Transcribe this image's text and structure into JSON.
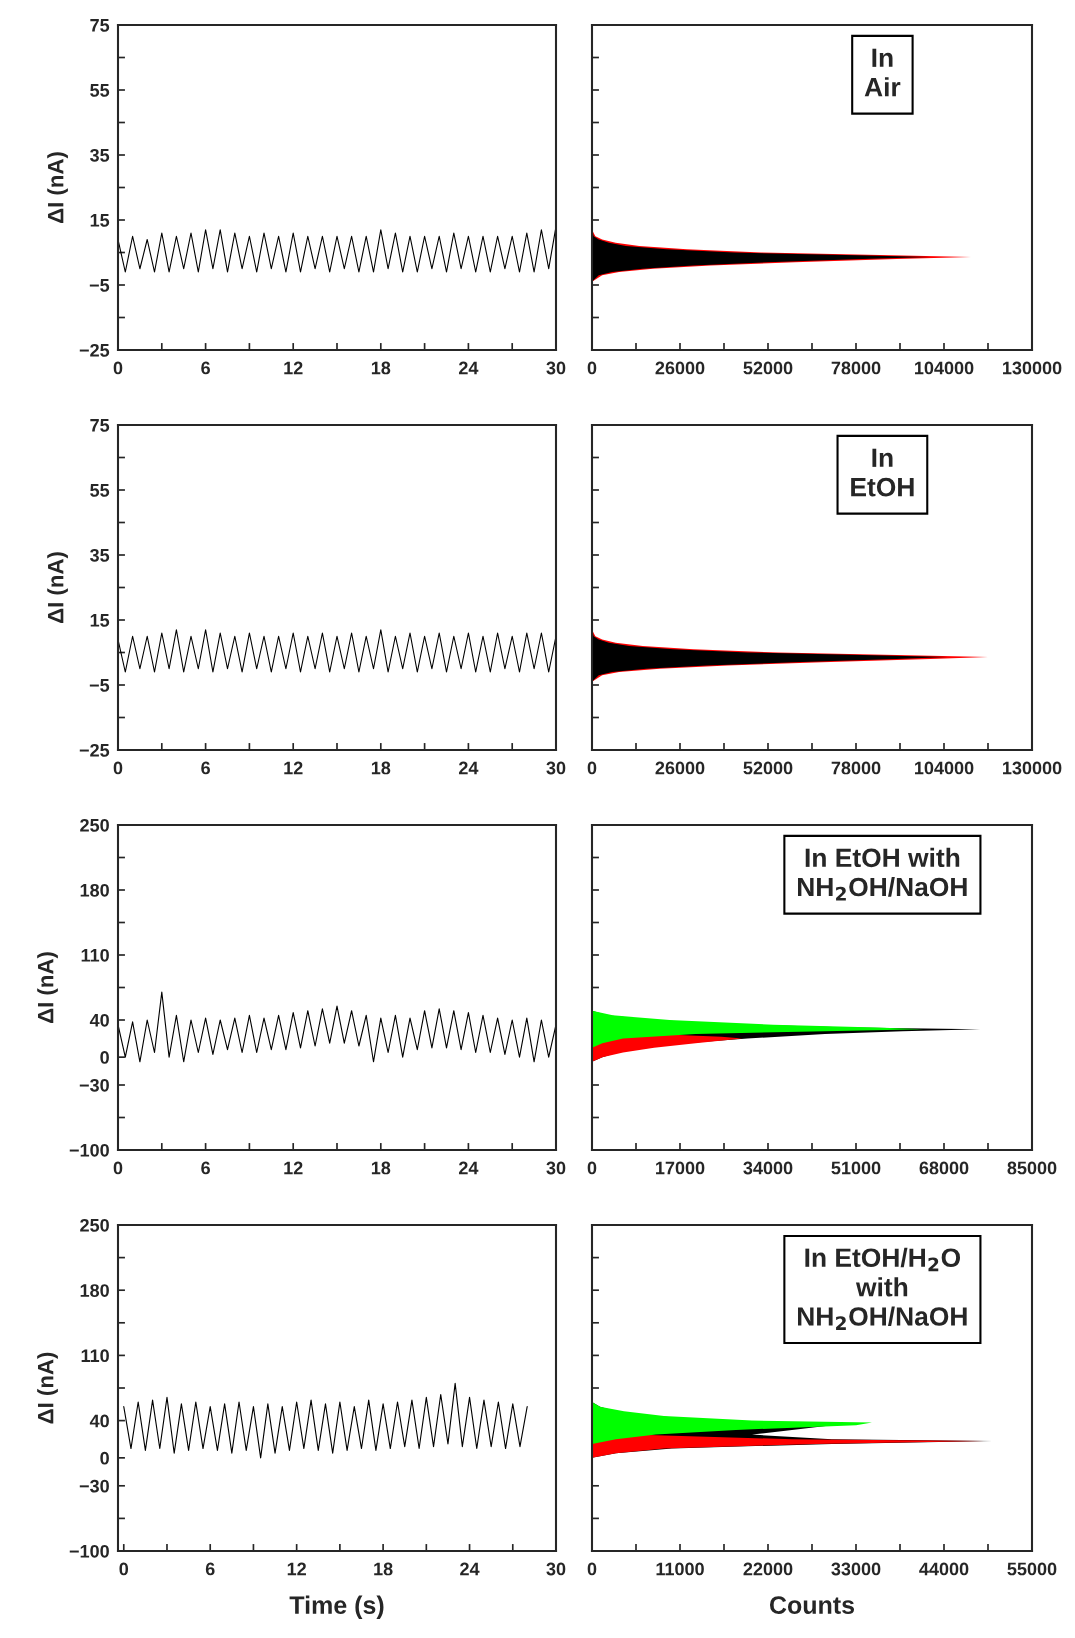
{
  "chart_data": [
    {
      "type": "line",
      "ylabel": "ΔI (nA)",
      "xlim": [
        0,
        30
      ],
      "ylim": [
        -25,
        75
      ],
      "xticks": [
        0,
        {
          "value": 3,
          "label": null
        },
        6,
        {
          "value": 9,
          "label": null
        },
        12,
        {
          "value": 15,
          "label": null
        },
        18,
        {
          "value": 21,
          "label": null
        },
        24,
        {
          "value": 27,
          "label": null
        },
        30
      ],
      "yticks": [
        -25,
        {
          "value": -15,
          "label": null
        },
        -5,
        {
          "value": 5,
          "label": null
        },
        15,
        {
          "value": 25,
          "label": null
        },
        35,
        {
          "value": 45,
          "label": null
        },
        55,
        {
          "value": 65,
          "label": null
        },
        75
      ],
      "series": [
        {
          "color": "#000000",
          "x": [
            0,
            0.5,
            1,
            1.5,
            2,
            2.5,
            3,
            3.5,
            4,
            4.5,
            5,
            5.5,
            6,
            6.5,
            7,
            7.5,
            8,
            8.5,
            9,
            9.5,
            10,
            10.5,
            11,
            11.5,
            12,
            12.5,
            13,
            13.5,
            14,
            14.5,
            15,
            15.5,
            16,
            16.5,
            17,
            17.5,
            18,
            18.5,
            19,
            19.5,
            20,
            20.5,
            21,
            21.5,
            22,
            22.5,
            23,
            23.5,
            24,
            24.5,
            25,
            25.5,
            26,
            26.5,
            27,
            27.5,
            28,
            28.5,
            29,
            29.5,
            30
          ],
          "values": [
            9,
            -1,
            10,
            0,
            9,
            -1,
            11,
            -1,
            10,
            0,
            11,
            -1,
            12,
            0,
            12,
            -1,
            11,
            0,
            10,
            -1,
            11,
            0,
            10,
            -1,
            11,
            -1,
            10,
            0,
            10,
            -1,
            10,
            0,
            10,
            -1,
            10,
            -1,
            12,
            0,
            11,
            -1,
            10,
            -1,
            10,
            0,
            10,
            -1,
            11,
            0,
            10,
            -1,
            10,
            -1,
            10,
            0,
            10,
            -1,
            11,
            -1,
            12,
            0,
            13
          ]
        }
      ]
    },
    {
      "type": "area",
      "orientation": "horizontal",
      "tick_labels": "x",
      "annotations": [
        "In\nAir"
      ],
      "xlim": [
        0,
        130000
      ],
      "ylim": [
        -25,
        75
      ],
      "xticks": [
        0,
        {
          "value": 13000,
          "label": null
        },
        26000,
        {
          "value": 39000,
          "label": null
        },
        52000,
        {
          "value": 65000,
          "label": null
        },
        78000,
        {
          "value": 91000,
          "label": null
        },
        104000,
        {
          "value": 117000,
          "label": null
        },
        130000
      ],
      "yticks": [
        -25,
        -15,
        -5,
        5,
        15,
        25,
        35,
        45,
        55,
        65,
        75
      ],
      "series": [
        {
          "color": "#ff0000",
          "x": [
            -4,
            -2,
            -1,
            0,
            1,
            2,
            3,
            3.6,
            4.2,
            5,
            6,
            7,
            8,
            9,
            10,
            12
          ],
          "values": [
            0,
            3000,
            8000,
            18000,
            35000,
            60000,
            90000,
            112000,
            85000,
            50000,
            28000,
            14000,
            7000,
            3000,
            1000,
            0
          ]
        },
        {
          "color": "#000000",
          "x": [
            -4,
            -2,
            -1,
            0,
            1,
            2,
            3,
            3.6,
            4.2,
            5,
            6,
            7,
            8,
            9,
            10,
            12
          ],
          "values": [
            0,
            2000,
            6000,
            15000,
            30000,
            52000,
            80000,
            100000,
            75000,
            42000,
            22000,
            10000,
            5000,
            2000,
            500,
            0
          ]
        }
      ]
    },
    {
      "type": "line",
      "ylabel": "ΔI (nA)",
      "xlim": [
        0,
        30
      ],
      "ylim": [
        -25,
        75
      ],
      "xticks": [
        0,
        {
          "value": 3,
          "label": null
        },
        6,
        {
          "value": 9,
          "label": null
        },
        12,
        {
          "value": 15,
          "label": null
        },
        18,
        {
          "value": 21,
          "label": null
        },
        24,
        {
          "value": 27,
          "label": null
        },
        30
      ],
      "yticks": [
        -25,
        {
          "value": -15,
          "label": null
        },
        -5,
        {
          "value": 5,
          "label": null
        },
        15,
        {
          "value": 25,
          "label": null
        },
        35,
        {
          "value": 45,
          "label": null
        },
        55,
        {
          "value": 65,
          "label": null
        },
        75
      ],
      "series": [
        {
          "color": "#000000",
          "x": [
            0,
            0.5,
            1,
            1.5,
            2,
            2.5,
            3,
            3.5,
            4,
            4.5,
            5,
            5.5,
            6,
            6.5,
            7,
            7.5,
            8,
            8.5,
            9,
            9.5,
            10,
            10.5,
            11,
            11.5,
            12,
            12.5,
            13,
            13.5,
            14,
            14.5,
            15,
            15.5,
            16,
            16.5,
            17,
            17.5,
            18,
            18.5,
            19,
            19.5,
            20,
            20.5,
            21,
            21.5,
            22,
            22.5,
            23,
            23.5,
            24,
            24.5,
            25,
            25.5,
            26,
            26.5,
            27,
            27.5,
            28,
            28.5,
            29,
            29.5,
            30
          ],
          "values": [
            9,
            -1,
            10,
            0,
            10,
            -1,
            11,
            0,
            12,
            -1,
            10,
            0,
            12,
            -1,
            11,
            0,
            10,
            -1,
            11,
            0,
            10,
            -1,
            10,
            0,
            11,
            -1,
            10,
            0,
            11,
            -1,
            10,
            0,
            11,
            -1,
            10,
            0,
            12,
            -1,
            10,
            0,
            11,
            -1,
            10,
            0,
            11,
            -1,
            10,
            0,
            11,
            -1,
            10,
            -1,
            11,
            0,
            10,
            -1,
            11,
            0,
            11,
            -1,
            10
          ]
        }
      ]
    },
    {
      "type": "area",
      "orientation": "horizontal",
      "tick_labels": "x",
      "annotations": [
        "In\nEtOH"
      ],
      "xlim": [
        0,
        130000
      ],
      "ylim": [
        -25,
        75
      ],
      "xticks": [
        0,
        {
          "value": 13000,
          "label": null
        },
        26000,
        {
          "value": 39000,
          "label": null
        },
        52000,
        {
          "value": 65000,
          "label": null
        },
        78000,
        {
          "value": 91000,
          "label": null
        },
        104000,
        {
          "value": 117000,
          "label": null
        },
        130000
      ],
      "yticks": [
        -25,
        -15,
        -5,
        5,
        15,
        25,
        35,
        45,
        55,
        65,
        75
      ],
      "series": [
        {
          "color": "#ff0000",
          "x": [
            -4,
            -2,
            -1,
            0,
            1,
            2,
            3,
            3.6,
            4.2,
            5,
            6,
            7,
            8,
            9,
            10,
            12
          ],
          "values": [
            0,
            3000,
            8000,
            20000,
            40000,
            68000,
            100000,
            117000,
            90000,
            55000,
            30000,
            15000,
            7000,
            3000,
            1000,
            0
          ]
        },
        {
          "color": "#000000",
          "x": [
            -4,
            -2,
            -1,
            0,
            1,
            2,
            3,
            3.6,
            4.2,
            5,
            6,
            7,
            8,
            9,
            10,
            12
          ],
          "values": [
            0,
            2000,
            6000,
            16000,
            34000,
            60000,
            90000,
            105000,
            80000,
            46000,
            24000,
            11000,
            5000,
            2000,
            500,
            0
          ]
        }
      ]
    },
    {
      "type": "line",
      "ylabel": "ΔI (nA)",
      "xlim": [
        0,
        30
      ],
      "ylim": [
        -100,
        250
      ],
      "xticks": [
        0,
        {
          "value": 3,
          "label": null
        },
        6,
        {
          "value": 9,
          "label": null
        },
        12,
        {
          "value": 15,
          "label": null
        },
        18,
        {
          "value": 21,
          "label": null
        },
        24,
        {
          "value": 27,
          "label": null
        },
        30
      ],
      "yticks": [
        -100,
        {
          "value": -65,
          "label": null
        },
        -30,
        0,
        40,
        {
          "value": 75,
          "label": null
        },
        110,
        {
          "value": 145,
          "label": null
        },
        180,
        {
          "value": 215,
          "label": null
        },
        250
      ],
      "series": [
        {
          "color": "#000000",
          "x": [
            0,
            0.5,
            1,
            1.5,
            2,
            2.5,
            3,
            3.5,
            4,
            4.5,
            5,
            5.5,
            6,
            6.5,
            7,
            7.5,
            8,
            8.5,
            9,
            9.5,
            10,
            10.5,
            11,
            11.5,
            12,
            12.5,
            13,
            13.5,
            14,
            14.5,
            15,
            15.5,
            16,
            16.5,
            17,
            17.5,
            18,
            18.5,
            19,
            19.5,
            20,
            20.5,
            21,
            21.5,
            22,
            22.5,
            23,
            23.5,
            24,
            24.5,
            25,
            25.5,
            26,
            26.5,
            27,
            27.5,
            28,
            28.5,
            29,
            29.5,
            30
          ],
          "values": [
            35,
            0,
            38,
            -5,
            40,
            5,
            70,
            0,
            45,
            -5,
            40,
            5,
            42,
            3,
            40,
            8,
            42,
            5,
            45,
            5,
            42,
            8,
            45,
            8,
            48,
            10,
            50,
            12,
            52,
            15,
            55,
            15,
            50,
            12,
            45,
            -5,
            42,
            5,
            45,
            0,
            42,
            8,
            50,
            10,
            52,
            10,
            50,
            8,
            48,
            5,
            45,
            5,
            42,
            3,
            40,
            0,
            42,
            -5,
            40,
            0,
            35
          ]
        }
      ]
    },
    {
      "type": "area",
      "orientation": "horizontal",
      "tick_labels": "x",
      "annotations": [
        "In EtOH with\nNH$_{2}$OH/NaOH"
      ],
      "xlim": [
        0,
        85000
      ],
      "ylim": [
        -100,
        250
      ],
      "xticks": [
        0,
        {
          "value": 8500,
          "label": null
        },
        17000,
        {
          "value": 25500,
          "label": null
        },
        34000,
        {
          "value": 42500,
          "label": null
        },
        51000,
        {
          "value": 59500,
          "label": null
        },
        68000,
        {
          "value": 76500,
          "label": null
        },
        85000
      ],
      "yticks": [
        -100,
        -65,
        -30,
        5,
        40,
        75,
        110,
        145,
        180,
        215,
        250
      ],
      "series": [
        {
          "color": "#000000",
          "x": [
            -5,
            0,
            5,
            10,
            15,
            20,
            25,
            28,
            30,
            32,
            35,
            40,
            45,
            50
          ],
          "values": [
            0,
            2000,
            5000,
            10000,
            18000,
            30000,
            45000,
            60000,
            75000,
            50000,
            30000,
            12000,
            3000,
            0
          ]
        },
        {
          "color": "#ff0000",
          "x": [
            -5,
            0,
            5,
            10,
            15,
            20,
            22,
            25
          ],
          "values": [
            0,
            2000,
            6000,
            12000,
            20000,
            29000,
            25000,
            12000
          ]
        },
        {
          "color": "#00ff00",
          "x": [
            10,
            15,
            20,
            25,
            28,
            30,
            32,
            35,
            40,
            45,
            50
          ],
          "values": [
            0,
            2000,
            6000,
            20000,
            45000,
            64000,
            55000,
            35000,
            15000,
            4000,
            0
          ]
        }
      ]
    },
    {
      "type": "line",
      "ylabel": "ΔI (nA)",
      "xlabel": "Time (s)",
      "xlim": [
        -0.4,
        30
      ],
      "ylim": [
        -100,
        250
      ],
      "xticks": [
        0,
        {
          "value": 3,
          "label": null
        },
        6,
        {
          "value": 9,
          "label": null
        },
        12,
        {
          "value": 15,
          "label": null
        },
        18,
        {
          "value": 21,
          "label": null
        },
        24,
        {
          "value": 27,
          "label": null
        },
        30
      ],
      "yticks": [
        -100,
        {
          "value": -65,
          "label": null
        },
        -30,
        0,
        40,
        {
          "value": 75,
          "label": null
        },
        110,
        {
          "value": 145,
          "label": null
        },
        180,
        {
          "value": 215,
          "label": null
        },
        250
      ],
      "series": [
        {
          "color": "#000000",
          "x": [
            0,
            0.5,
            1,
            1.5,
            2,
            2.5,
            3,
            3.5,
            4,
            4.5,
            5,
            5.5,
            6,
            6.5,
            7,
            7.5,
            8,
            8.5,
            9,
            9.5,
            10,
            10.5,
            11,
            11.5,
            12,
            12.5,
            13,
            13.5,
            14,
            14.5,
            15,
            15.5,
            16,
            16.5,
            17,
            17.5,
            18,
            18.5,
            19,
            19.5,
            20,
            20.5,
            21,
            21.5,
            22,
            22.5,
            23,
            23.5,
            24,
            24.5,
            25,
            25.5,
            26,
            26.5,
            27,
            27.5,
            28
          ],
          "values": [
            55,
            10,
            60,
            8,
            62,
            10,
            65,
            5,
            58,
            8,
            60,
            10,
            55,
            8,
            58,
            5,
            60,
            8,
            55,
            0,
            58,
            5,
            55,
            8,
            60,
            10,
            62,
            8,
            58,
            5,
            60,
            8,
            55,
            10,
            62,
            8,
            58,
            10,
            60,
            12,
            62,
            10,
            65,
            12,
            68,
            15,
            80,
            12,
            65,
            10,
            62,
            12,
            60,
            10,
            58,
            12,
            55
          ]
        }
      ]
    },
    {
      "type": "area",
      "orientation": "horizontal",
      "tick_labels": "x",
      "xlabel": "Counts",
      "annotations": [
        "In EtOH/H$_{2}$O\nwith\nNH$_{2}$OH/NaOH"
      ],
      "xlim": [
        0,
        55000
      ],
      "ylim": [
        -100,
        250
      ],
      "xticks": [
        0,
        {
          "value": 5500,
          "label": null
        },
        11000,
        {
          "value": 16500,
          "label": null
        },
        22000,
        {
          "value": 27500,
          "label": null
        },
        33000,
        {
          "value": 38500,
          "label": null
        },
        44000,
        {
          "value": 49500,
          "label": null
        },
        55000
      ],
      "yticks": [
        -100,
        -65,
        -30,
        5,
        40,
        75,
        110,
        145,
        180,
        215,
        250
      ],
      "series": [
        {
          "color": "#000000",
          "x": [
            0,
            5,
            10,
            15,
            18,
            20,
            25,
            30,
            35,
            38,
            40,
            45,
            50,
            55,
            60
          ],
          "values": [
            0,
            3000,
            10000,
            30000,
            50000,
            30000,
            20000,
            25000,
            30000,
            25000,
            15000,
            8000,
            3000,
            1000,
            0
          ]
        },
        {
          "color": "#ff0000",
          "x": [
            0,
            5,
            10,
            15,
            18,
            20,
            25,
            30
          ],
          "values": [
            0,
            3000,
            9000,
            28000,
            49000,
            25000,
            5000,
            0
          ]
        },
        {
          "color": "#00ff00",
          "x": [
            15,
            20,
            25,
            30,
            35,
            38,
            40,
            45,
            50,
            55,
            60
          ],
          "values": [
            0,
            3000,
            8000,
            18000,
            33000,
            35000,
            20000,
            9000,
            4000,
            1000,
            0
          ]
        }
      ]
    }
  ]
}
